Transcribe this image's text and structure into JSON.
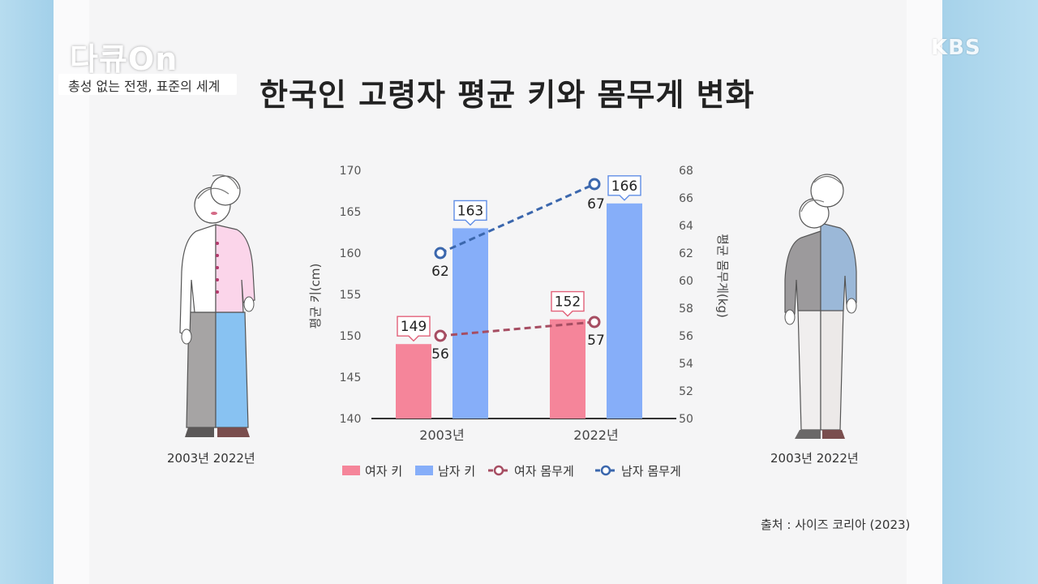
{
  "header": {
    "channel_logo": "다큐On",
    "program_subtitle": "총성 없는 전쟁, 표준의 세계",
    "broadcaster": "KBS"
  },
  "main": {
    "title": "한국인 고령자 평균 키와 몸무게 변화",
    "source": "출처 : 사이즈 코리아 (2023)",
    "female_figure_label": "2003년  2022년",
    "male_figure_label": "2003년  2022년"
  },
  "colors": {
    "female_height": "#f5859a",
    "male_height": "#86aef9",
    "female_weight": "#a64d62",
    "male_weight": "#3b67ad"
  },
  "chart_data": {
    "type": "bar",
    "categories": [
      "2003년",
      "2022년"
    ],
    "ylabel": "평균 키(cm)",
    "y2label": "평균 몸무게(kg)",
    "ylim": [
      140,
      170
    ],
    "y2lim": [
      50,
      68
    ],
    "yticks": [
      "140",
      "145",
      "150",
      "155",
      "160",
      "165",
      "170"
    ],
    "y2ticks": [
      "50",
      "52",
      "54",
      "56",
      "58",
      "60",
      "62",
      "64",
      "66",
      "68"
    ],
    "series": [
      {
        "name": "여자 키",
        "type": "bar",
        "axis": "left",
        "values": [
          149,
          152
        ],
        "labels": [
          "149",
          "152"
        ]
      },
      {
        "name": "남자 키",
        "type": "bar",
        "axis": "left",
        "values": [
          163,
          166
        ],
        "labels": [
          "163",
          "166"
        ]
      },
      {
        "name": "여자 몸무게",
        "type": "line",
        "axis": "right",
        "values": [
          56,
          57
        ],
        "labels": [
          "56",
          "57"
        ]
      },
      {
        "name": "남자 몸무게",
        "type": "line",
        "axis": "right",
        "values": [
          62,
          67
        ],
        "labels": [
          "62",
          "67"
        ]
      }
    ],
    "legend_position": "bottom",
    "grid": false
  }
}
